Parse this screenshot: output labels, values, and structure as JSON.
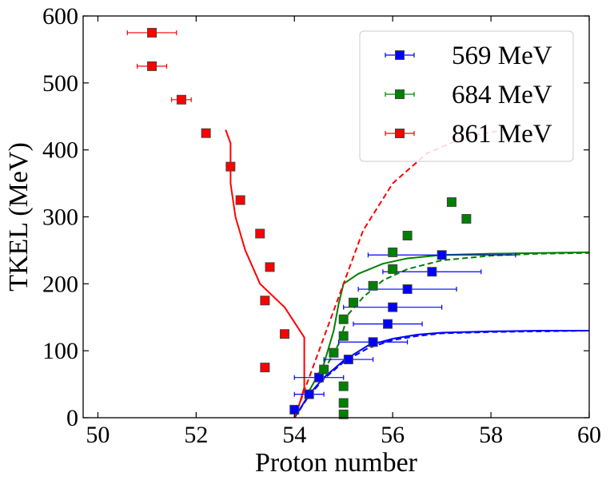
{
  "chart_data": {
    "type": "scatter",
    "title": "",
    "xlabel": "Proton number",
    "ylabel": "TKEL (MeV)",
    "xlim": [
      49.7,
      60
    ],
    "ylim": [
      0,
      600
    ],
    "xticks": [
      50,
      52,
      54,
      56,
      58,
      60
    ],
    "yticks": [
      0,
      100,
      200,
      300,
      400,
      500,
      600
    ],
    "xtick_labels": [
      "50",
      "52",
      "54",
      "56",
      "58",
      "60"
    ],
    "ytick_labels": [
      "0",
      "100",
      "200",
      "300",
      "400",
      "500",
      "600"
    ],
    "grid": false,
    "legend_position": "top-right",
    "series": [
      {
        "name": "569 MeV",
        "color": "#0000ff",
        "marker": "square",
        "points": [
          {
            "x": 54.0,
            "y": 12,
            "xerr": 0.05
          },
          {
            "x": 54.3,
            "y": 35,
            "xerr": 0.3
          },
          {
            "x": 54.5,
            "y": 60,
            "xerr": 0.5
          },
          {
            "x": 55.1,
            "y": 87,
            "xerr": 0.5
          },
          {
            "x": 55.6,
            "y": 113,
            "xerr": 0.7
          },
          {
            "x": 55.9,
            "y": 140,
            "xerr": 0.7
          },
          {
            "x": 56.0,
            "y": 165,
            "xerr": 1.0
          },
          {
            "x": 56.3,
            "y": 192,
            "xerr": 1.0
          },
          {
            "x": 56.8,
            "y": 218,
            "xerr": 1.0
          },
          {
            "x": 57.0,
            "y": 243,
            "xerr": 1.5
          }
        ]
      },
      {
        "name": "684 MeV",
        "color": "#008000",
        "marker": "square",
        "points": [
          {
            "x": 55.0,
            "y": 5,
            "xerr": 0
          },
          {
            "x": 55.0,
            "y": 22,
            "xerr": 0
          },
          {
            "x": 55.0,
            "y": 47,
            "xerr": 0
          },
          {
            "x": 54.6,
            "y": 72,
            "xerr": 0
          },
          {
            "x": 54.8,
            "y": 97,
            "xerr": 0
          },
          {
            "x": 55.0,
            "y": 122,
            "xerr": 0
          },
          {
            "x": 55.0,
            "y": 147,
            "xerr": 0
          },
          {
            "x": 55.2,
            "y": 172,
            "xerr": 0
          },
          {
            "x": 55.6,
            "y": 197,
            "xerr": 0
          },
          {
            "x": 56.0,
            "y": 222,
            "xerr": 0
          },
          {
            "x": 56.0,
            "y": 247,
            "xerr": 0
          },
          {
            "x": 56.3,
            "y": 272,
            "xerr": 0
          },
          {
            "x": 57.5,
            "y": 297,
            "xerr": 0
          },
          {
            "x": 57.2,
            "y": 322,
            "xerr": 0
          }
        ]
      },
      {
        "name": "861 MeV",
        "color": "#ff0000",
        "marker": "square",
        "points": [
          {
            "x": 53.4,
            "y": 75,
            "xerr": 0
          },
          {
            "x": 53.8,
            "y": 125,
            "xerr": 0
          },
          {
            "x": 53.4,
            "y": 175,
            "xerr": 0
          },
          {
            "x": 53.5,
            "y": 225,
            "xerr": 0
          },
          {
            "x": 53.3,
            "y": 275,
            "xerr": 0
          },
          {
            "x": 52.9,
            "y": 325,
            "xerr": 0
          },
          {
            "x": 52.7,
            "y": 375,
            "xerr": 0
          },
          {
            "x": 52.2,
            "y": 425,
            "xerr": 0
          },
          {
            "x": 51.7,
            "y": 475,
            "xerr": 0.2
          },
          {
            "x": 51.1,
            "y": 525,
            "xerr": 0.3
          },
          {
            "x": 51.1,
            "y": 575,
            "xerr": 0.5
          }
        ]
      }
    ],
    "curves": [
      {
        "name": "569 MeV solid",
        "color": "#0000ff",
        "style": "solid",
        "x": [
          54.0,
          54.3,
          54.6,
          55.0,
          55.5,
          56.0,
          56.5,
          57.0,
          58.0,
          59.0,
          60.0
        ],
        "y": [
          0,
          35,
          60,
          85,
          108,
          118,
          124,
          127,
          129,
          130,
          130
        ]
      },
      {
        "name": "569 MeV dashed",
        "color": "#0000ff",
        "style": "dashed",
        "x": [
          54.0,
          54.3,
          54.6,
          55.0,
          55.5,
          56.0,
          56.5,
          57.0,
          58.0,
          59.0,
          60.0
        ],
        "y": [
          0,
          33,
          58,
          83,
          104,
          116,
          122,
          126,
          128,
          129,
          130
        ]
      },
      {
        "name": "684 MeV solid",
        "color": "#008000",
        "style": "solid",
        "x": [
          54.3,
          54.6,
          54.8,
          54.9,
          55.0,
          55.3,
          55.8,
          56.3,
          57.0,
          58.0,
          59.0,
          60.0
        ],
        "y": [
          40,
          80,
          130,
          170,
          200,
          215,
          230,
          238,
          243,
          245,
          246,
          247
        ]
      },
      {
        "name": "684 MeV dashed",
        "color": "#008000",
        "style": "dashed",
        "x": [
          54.6,
          54.9,
          55.1,
          55.4,
          55.8,
          56.3,
          57.0,
          58.0,
          59.0,
          60.0
        ],
        "y": [
          70,
          110,
          155,
          180,
          205,
          222,
          235,
          242,
          245,
          246
        ]
      },
      {
        "name": "861 MeV solid",
        "color": "#ff0000",
        "style": "solid",
        "x": [
          52.6,
          52.7,
          52.7,
          52.8,
          53.0,
          53.3,
          53.8,
          54.2,
          54.2,
          54.1,
          54.05,
          54.0
        ],
        "y": [
          430,
          410,
          350,
          300,
          250,
          200,
          165,
          120,
          45,
          20,
          10,
          0
        ]
      },
      {
        "name": "861 MeV dashed",
        "color": "#ff0000",
        "style": "dashed",
        "x": [
          54.0,
          54.3,
          54.6,
          55.0,
          55.4,
          56.0,
          56.7,
          57.5,
          58.3
        ],
        "y": [
          0,
          60,
          120,
          200,
          280,
          350,
          395,
          420,
          430
        ]
      }
    ]
  }
}
